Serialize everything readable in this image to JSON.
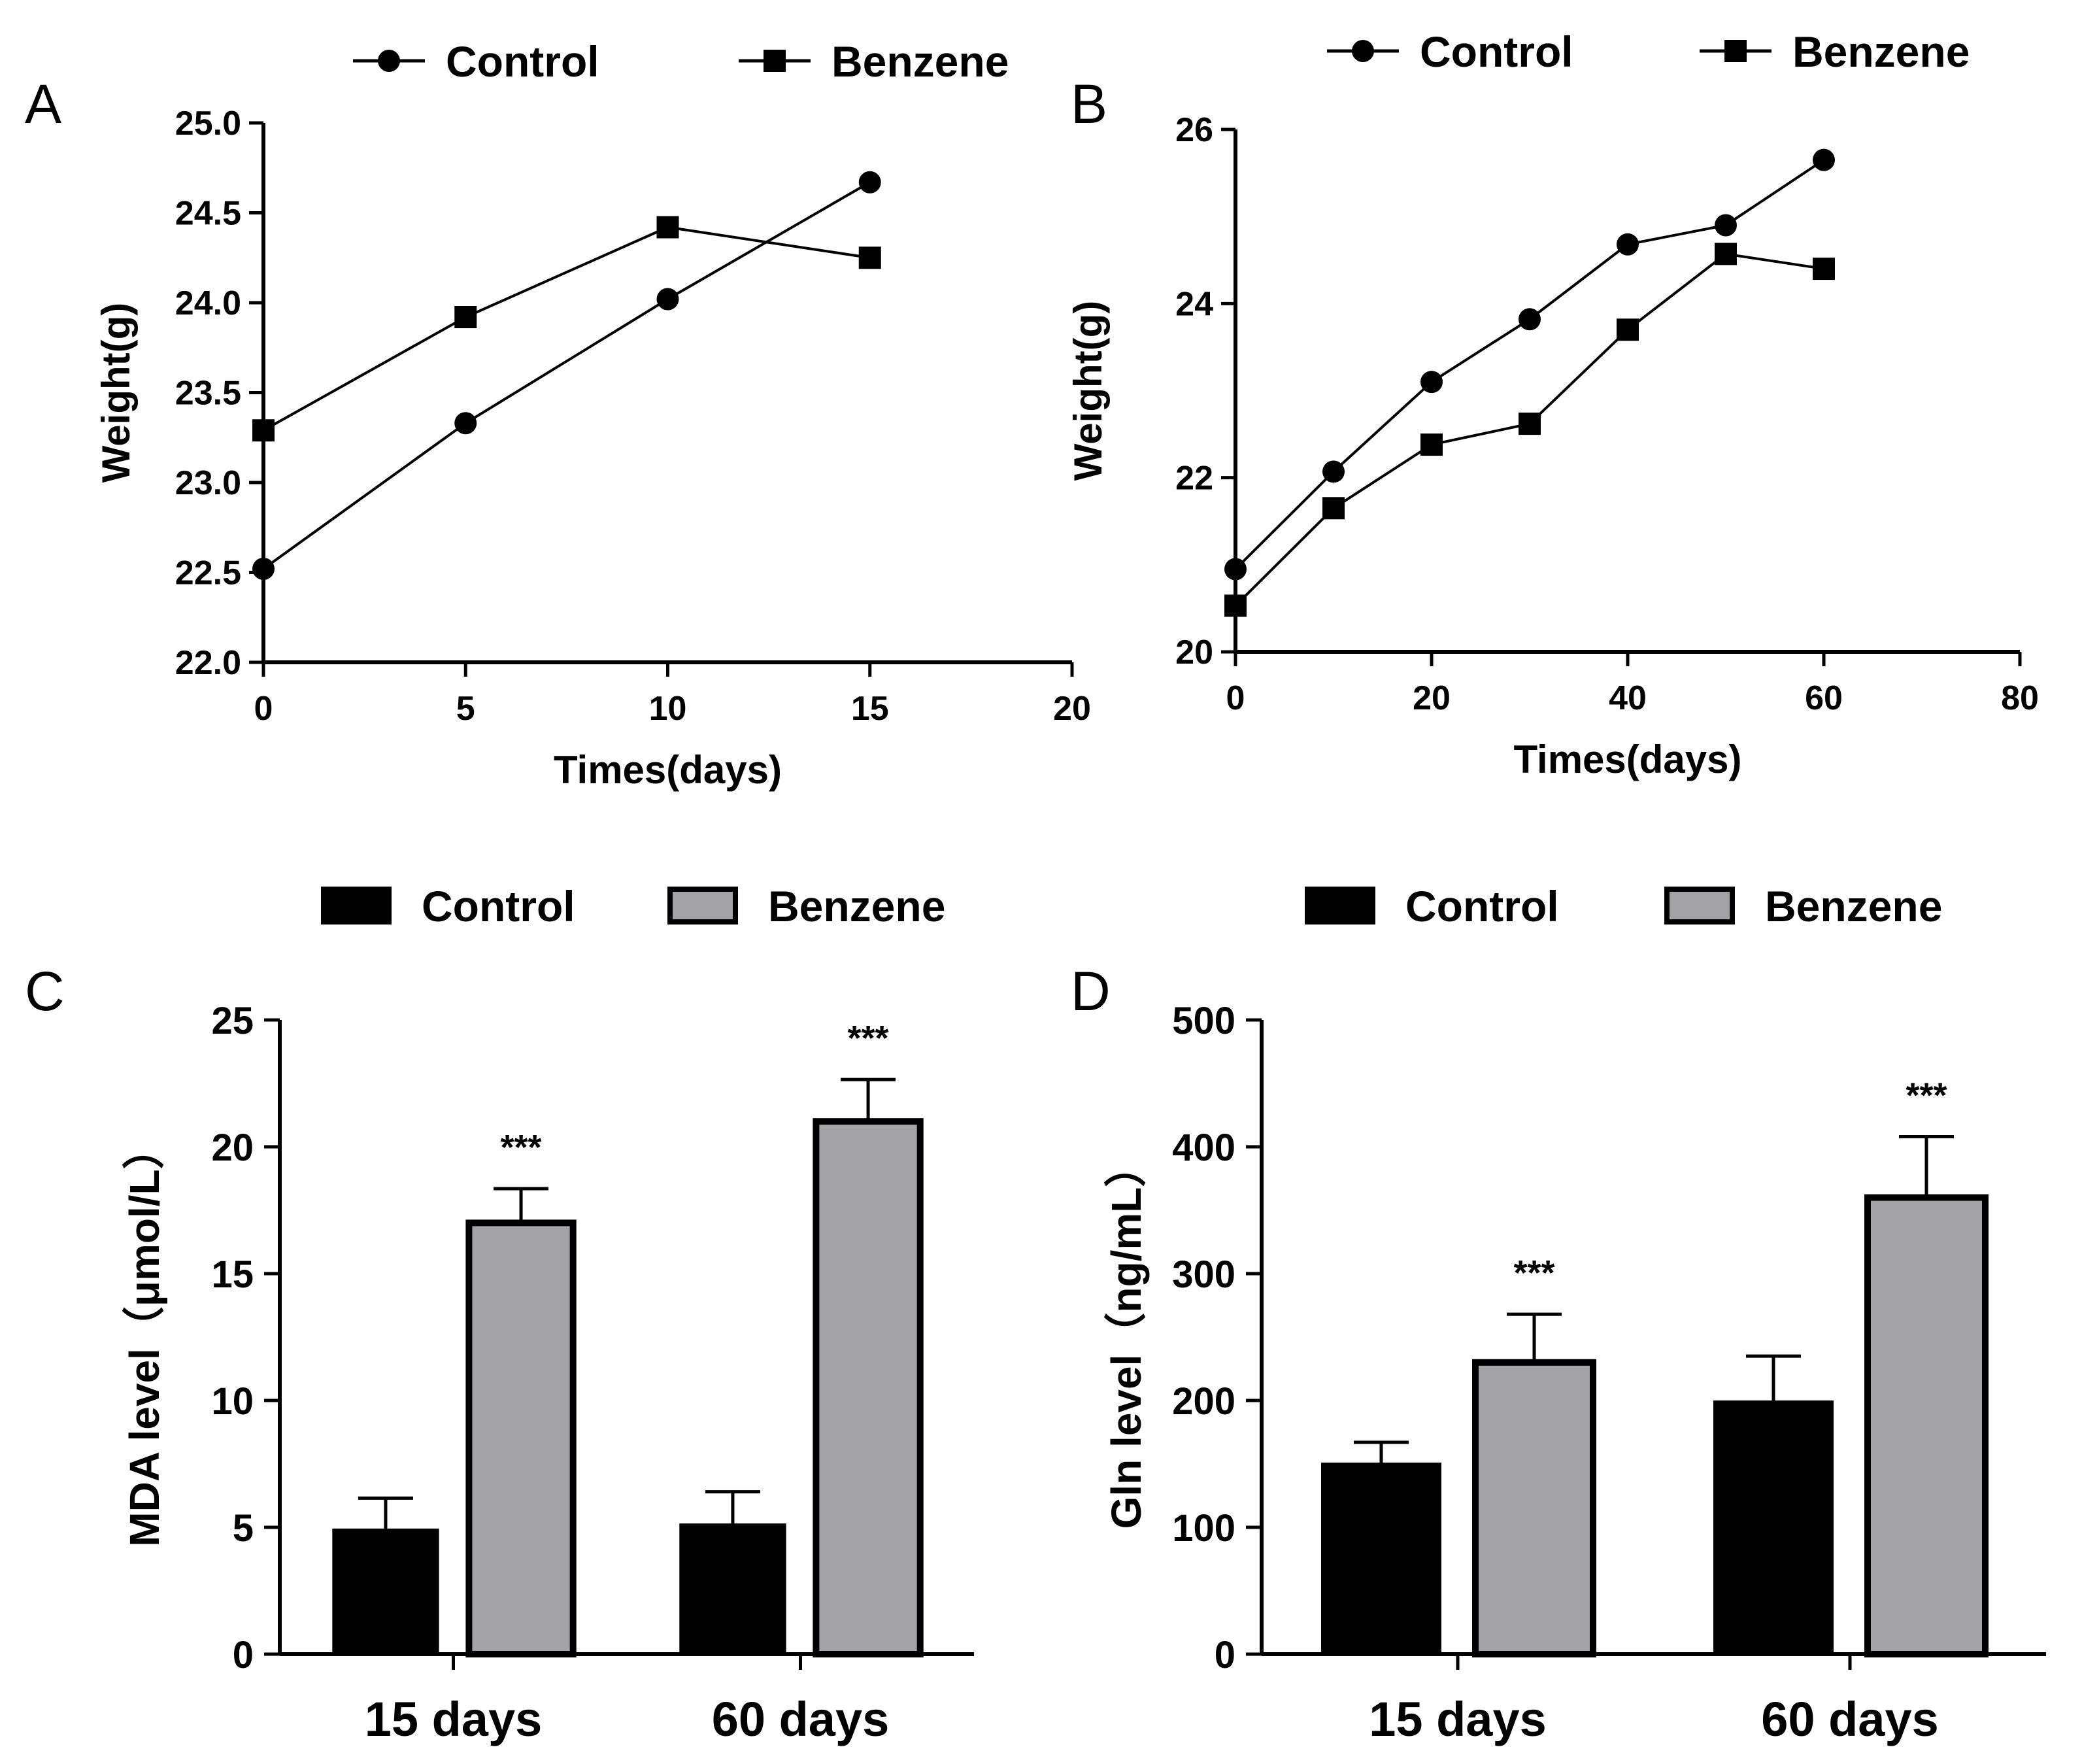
{
  "figure": {
    "colors": {
      "axis": "#000000",
      "line": "#000000",
      "control_bar": "#000000",
      "benzene_bar": "#a3a3a6"
    }
  },
  "chart_data": [
    {
      "panel": "A",
      "type": "line",
      "title": "",
      "xlabel": "Times(days)",
      "ylabel": "Weight(g)",
      "xlim": [
        0,
        20
      ],
      "ylim": [
        22.0,
        25.0
      ],
      "xticks": [
        0,
        5,
        10,
        15,
        20
      ],
      "xtick_labels": [
        "0",
        "5",
        "10",
        "15",
        "20"
      ],
      "yticks": [
        22.0,
        22.5,
        23.0,
        23.5,
        24.0,
        24.5,
        25.0
      ],
      "ytick_labels": [
        "22.0",
        "22.5",
        "23.0",
        "23.5",
        "24.0",
        "24.5",
        "25.0"
      ],
      "legend": [
        "Control",
        "Benzene"
      ],
      "series": [
        {
          "name": "Control",
          "marker": "circle",
          "x": [
            0,
            5,
            10,
            15
          ],
          "values": [
            22.52,
            23.33,
            24.02,
            24.67
          ]
        },
        {
          "name": "Benzene",
          "marker": "square",
          "x": [
            0,
            5,
            10,
            15
          ],
          "values": [
            23.29,
            23.92,
            24.42,
            24.25
          ]
        }
      ]
    },
    {
      "panel": "B",
      "type": "line",
      "title": "",
      "xlabel": "Times(days)",
      "ylabel": "Weight(g)",
      "xlim": [
        0,
        80
      ],
      "ylim": [
        20,
        26
      ],
      "xticks": [
        0,
        20,
        40,
        60,
        80
      ],
      "xtick_labels": [
        "0",
        "20",
        "40",
        "60",
        "80"
      ],
      "yticks": [
        20,
        22,
        24,
        26
      ],
      "ytick_labels": [
        "20",
        "22",
        "24",
        "26"
      ],
      "legend": [
        "Control",
        "Benzene"
      ],
      "series": [
        {
          "name": "Control",
          "marker": "circle",
          "x": [
            0,
            10,
            20,
            30,
            40,
            50,
            60
          ],
          "values": [
            20.95,
            22.07,
            23.1,
            23.82,
            24.68,
            24.9,
            25.65
          ]
        },
        {
          "name": "Benzene",
          "marker": "square",
          "x": [
            0,
            10,
            20,
            30,
            40,
            50,
            60
          ],
          "values": [
            20.53,
            21.65,
            22.38,
            22.62,
            23.7,
            24.57,
            24.4
          ]
        }
      ]
    },
    {
      "panel": "C",
      "type": "bar",
      "title": "",
      "xlabel": "",
      "ylabel": "MDA level（μmol/L）",
      "ylim": [
        0,
        25
      ],
      "yticks": [
        0,
        5,
        10,
        15,
        20,
        25
      ],
      "ytick_labels": [
        "0",
        "5",
        "10",
        "15",
        "20",
        "25"
      ],
      "categories": [
        "15 days",
        "60 days"
      ],
      "legend": [
        "Control",
        "Benzene"
      ],
      "series": [
        {
          "name": "Control",
          "values": [
            4.9,
            5.1
          ],
          "errors": [
            1.25,
            1.3
          ],
          "significance": [
            "",
            ""
          ]
        },
        {
          "name": "Benzene",
          "values": [
            17.0,
            21.0
          ],
          "errors": [
            1.35,
            1.65
          ],
          "significance": [
            "***",
            "***"
          ]
        }
      ]
    },
    {
      "panel": "D",
      "type": "bar",
      "title": "",
      "xlabel": "",
      "ylabel": "Gln level（ng/mL）",
      "ylim": [
        0,
        500
      ],
      "yticks": [
        0,
        100,
        200,
        300,
        400,
        500
      ],
      "ytick_labels": [
        "0",
        "100",
        "200",
        "300",
        "400",
        "500"
      ],
      "categories": [
        "15 days",
        "60 days"
      ],
      "legend": [
        "Control",
        "Benzene"
      ],
      "series": [
        {
          "name": "Control",
          "values": [
            150,
            199
          ],
          "errors": [
            17,
            36
          ],
          "significance": [
            "",
            ""
          ]
        },
        {
          "name": "Benzene",
          "values": [
            230,
            360
          ],
          "errors": [
            38,
            48
          ],
          "significance": [
            "***",
            "***"
          ]
        }
      ]
    }
  ]
}
